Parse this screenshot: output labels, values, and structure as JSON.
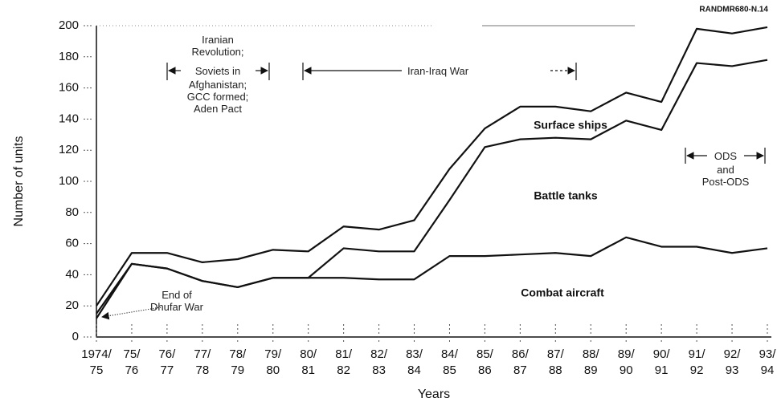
{
  "chart_data": {
    "type": "stacked-line",
    "source_note": "RANDMR680-N.14",
    "x_label": "Years",
    "y_label": "Number of units",
    "categories": [
      "1974/\n75",
      "75/\n76",
      "76/\n77",
      "77/\n78",
      "78/\n79",
      "79/\n80",
      "80/\n81",
      "81/\n82",
      "82/\n83",
      "83/\n84",
      "84/\n85",
      "85/\n86",
      "86/\n87",
      "87/\n88",
      "88/\n89",
      "89/\n90",
      "90/\n91",
      "91/\n92",
      "92/\n93",
      "93/\n94"
    ],
    "series": [
      {
        "name": "Combat aircraft",
        "color": "#111111",
        "values": [
          12,
          47,
          44,
          36,
          32,
          38,
          38,
          38,
          37,
          37,
          52,
          52,
          53,
          54,
          52,
          64,
          58,
          58,
          54,
          57
        ]
      },
      {
        "name": "Battle tanks",
        "color": "#111111",
        "values": [
          3,
          0,
          0,
          0,
          0,
          0,
          0,
          19,
          18,
          18,
          36,
          70,
          74,
          74,
          75,
          75,
          75,
          118,
          120,
          121
        ]
      },
      {
        "name": "Surface ships",
        "color": "#111111",
        "values": [
          5,
          7,
          10,
          12,
          18,
          18,
          17,
          14,
          14,
          20,
          20,
          12,
          21,
          20,
          18,
          18,
          18,
          22,
          21,
          21
        ]
      }
    ],
    "ylim": [
      0,
      200
    ],
    "yticks": [
      0,
      20,
      40,
      60,
      80,
      100,
      120,
      140,
      160,
      180,
      200
    ],
    "annotations": [
      "Iranian\nRevolution;",
      "Soviets in",
      "Afghanistan;\nGCC formed;\nAden Pact",
      "Iran-Iraq War",
      "End of\nDhufar War",
      "ODS",
      "and\nPost-ODS"
    ]
  }
}
